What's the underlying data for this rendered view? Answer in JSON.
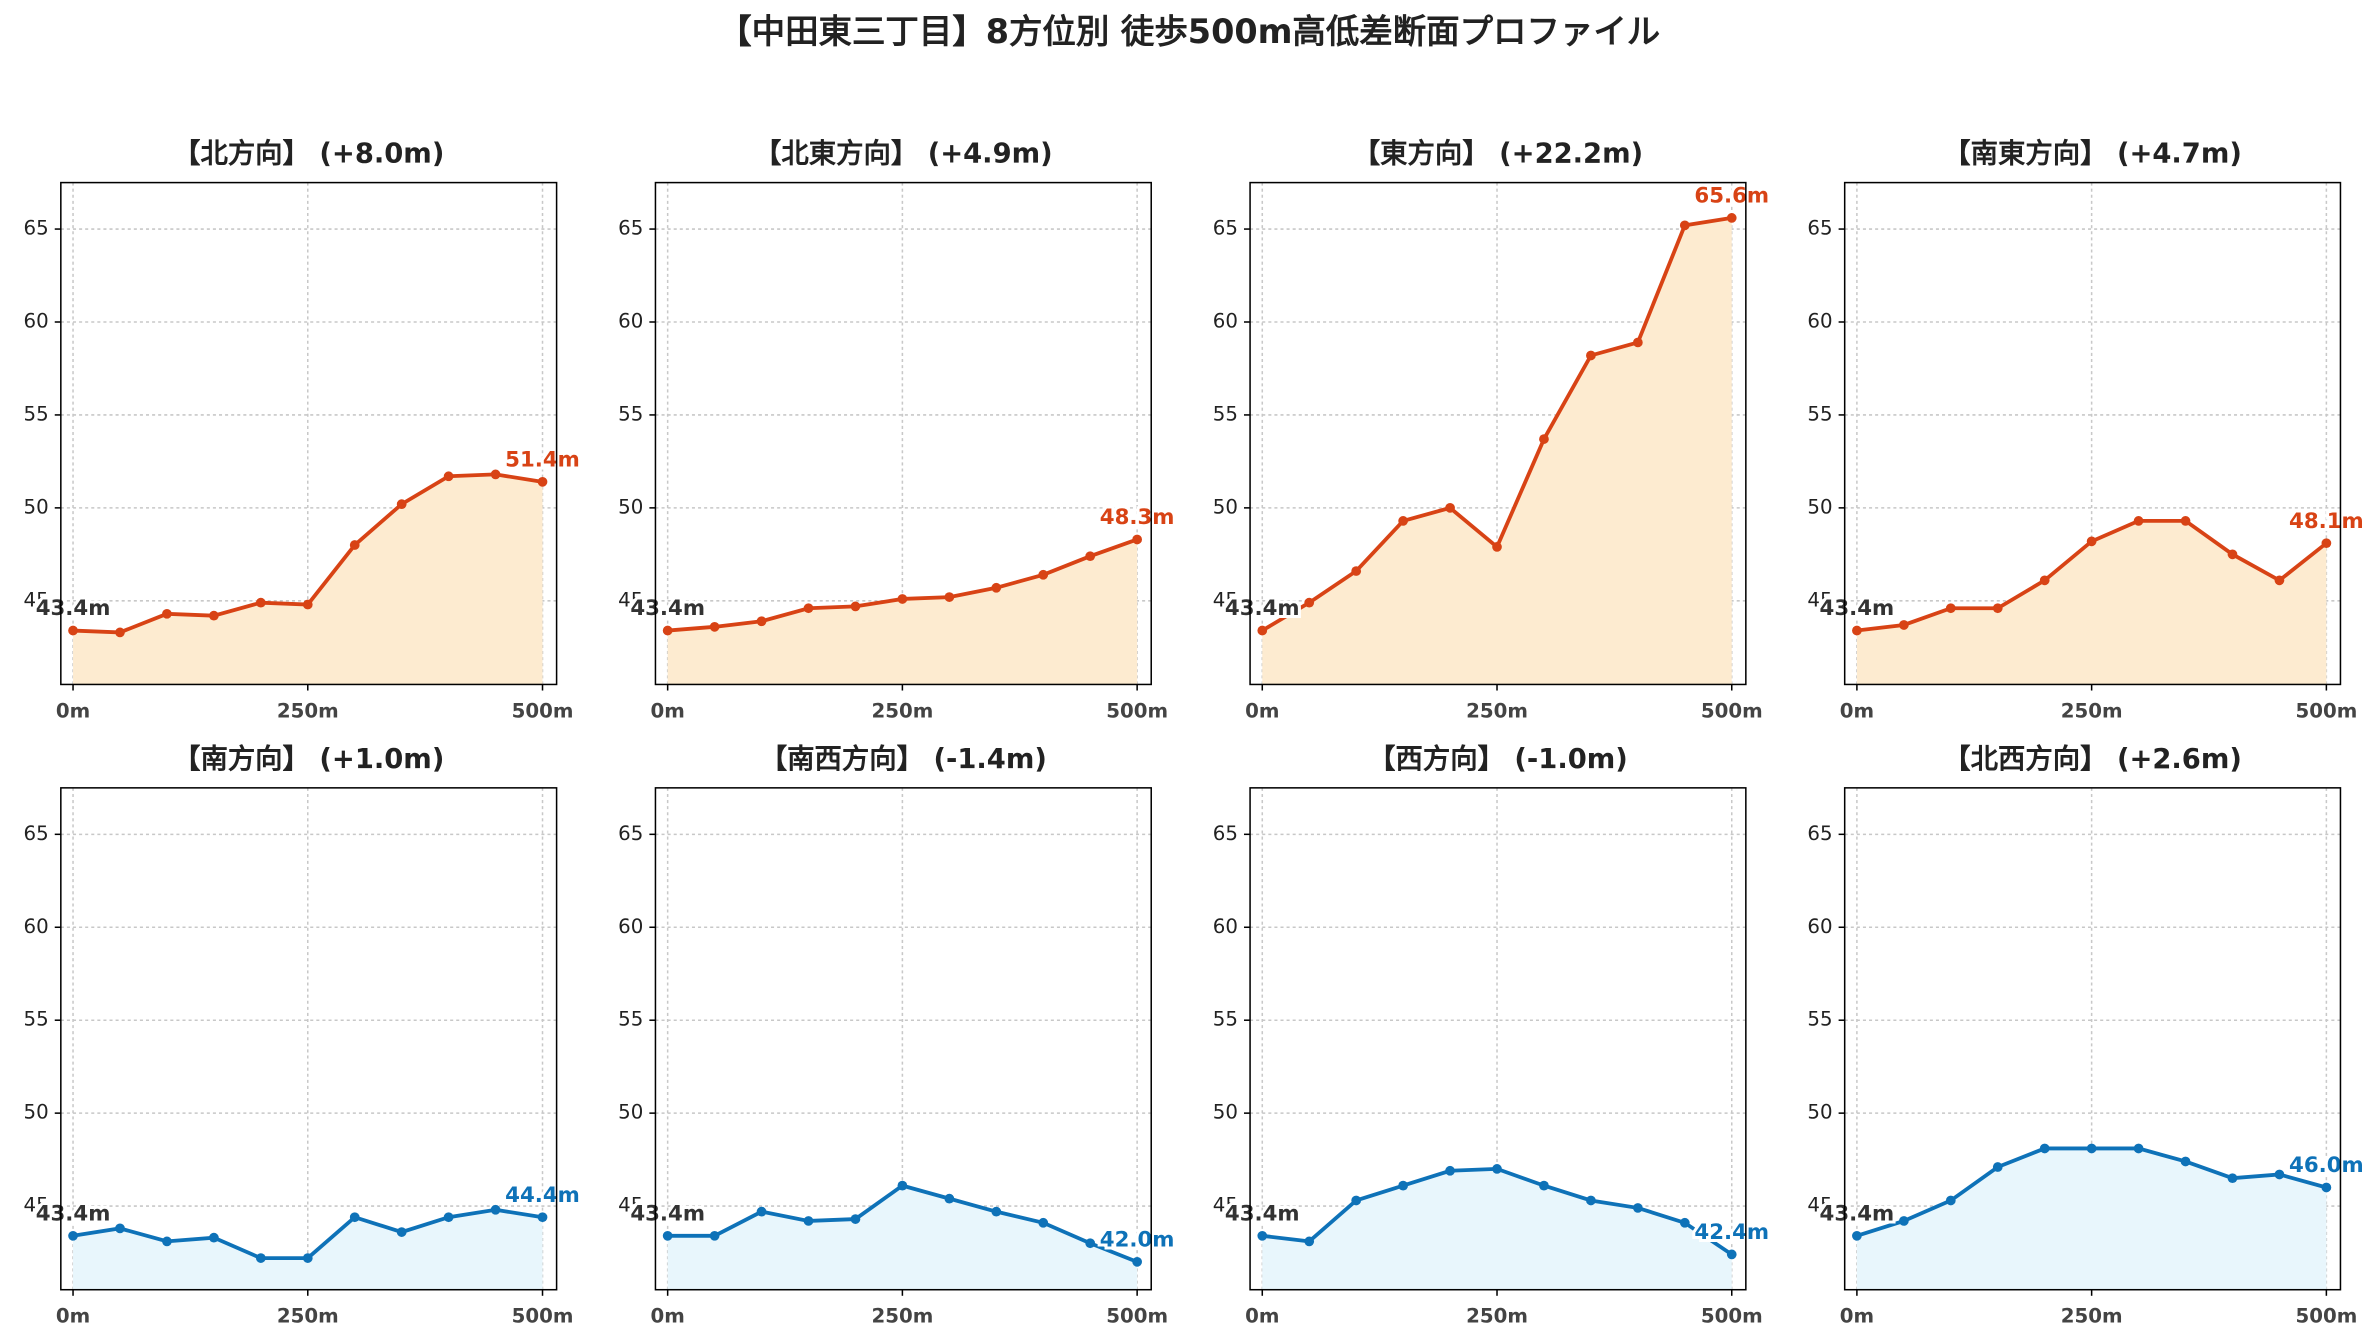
{
  "title": "【中田東三丁目】8方位別 徒歩500m高低差断面プロファイル",
  "chart_data": [
    {
      "type": "line",
      "title": "【北方向】 (+8.0m)",
      "x": [
        0,
        50,
        100,
        150,
        200,
        250,
        300,
        350,
        400,
        450,
        500
      ],
      "values": [
        43.4,
        43.3,
        44.3,
        44.2,
        44.9,
        44.8,
        48.0,
        50.2,
        51.7,
        51.8,
        51.4
      ],
      "value_labels": [
        "43.4m",
        null,
        null,
        null,
        null,
        null,
        null,
        null,
        null,
        null,
        "51.4m"
      ],
      "color": "#d84315",
      "fill_color": "#fdebd0",
      "xlim": [
        -13,
        515
      ],
      "ylim": [
        40.5,
        67.5
      ],
      "xticks": [
        {
          "value": 0,
          "label": "0m"
        },
        {
          "value": 250,
          "label": "250m"
        },
        {
          "value": 500,
          "label": "500m"
        }
      ],
      "yticks": [
        45,
        50,
        55,
        60,
        65
      ],
      "grid": true
    },
    {
      "type": "line",
      "title": "【北東方向】 (+4.9m)",
      "x": [
        0,
        50,
        100,
        150,
        200,
        250,
        300,
        350,
        400,
        450,
        500
      ],
      "values": [
        43.4,
        43.6,
        43.9,
        44.6,
        44.7,
        45.1,
        45.2,
        45.7,
        46.4,
        47.4,
        48.3
      ],
      "value_labels": [
        "43.4m",
        null,
        null,
        null,
        null,
        null,
        null,
        null,
        null,
        null,
        "48.3m"
      ],
      "color": "#d84315",
      "fill_color": "#fdebd0",
      "xlim": [
        -13,
        515
      ],
      "ylim": [
        40.5,
        67.5
      ],
      "xticks": [
        {
          "value": 0,
          "label": "0m"
        },
        {
          "value": 250,
          "label": "250m"
        },
        {
          "value": 500,
          "label": "500m"
        }
      ],
      "yticks": [
        45,
        50,
        55,
        60,
        65
      ],
      "grid": true
    },
    {
      "type": "line",
      "title": "【東方向】 (+22.2m)",
      "x": [
        0,
        50,
        100,
        150,
        200,
        250,
        300,
        350,
        400,
        450,
        500
      ],
      "values": [
        43.4,
        44.9,
        46.6,
        49.3,
        50.0,
        47.9,
        53.7,
        58.2,
        58.9,
        65.2,
        65.6
      ],
      "value_labels": [
        "43.4m",
        null,
        null,
        null,
        null,
        null,
        null,
        null,
        null,
        null,
        "65.6m"
      ],
      "color": "#d84315",
      "fill_color": "#fdebd0",
      "xlim": [
        -13,
        515
      ],
      "ylim": [
        40.5,
        67.5
      ],
      "xticks": [
        {
          "value": 0,
          "label": "0m"
        },
        {
          "value": 250,
          "label": "250m"
        },
        {
          "value": 500,
          "label": "500m"
        }
      ],
      "yticks": [
        45,
        50,
        55,
        60,
        65
      ],
      "grid": true
    },
    {
      "type": "line",
      "title": "【南東方向】 (+4.7m)",
      "x": [
        0,
        50,
        100,
        150,
        200,
        250,
        300,
        350,
        400,
        450,
        500
      ],
      "values": [
        43.4,
        43.7,
        44.6,
        44.6,
        46.1,
        48.2,
        49.3,
        49.3,
        47.5,
        46.1,
        48.1
      ],
      "value_labels": [
        "43.4m",
        null,
        null,
        null,
        null,
        null,
        null,
        null,
        null,
        null,
        "48.1m"
      ],
      "color": "#d84315",
      "fill_color": "#fdebd0",
      "xlim": [
        -13,
        515
      ],
      "ylim": [
        40.5,
        67.5
      ],
      "xticks": [
        {
          "value": 0,
          "label": "0m"
        },
        {
          "value": 250,
          "label": "250m"
        },
        {
          "value": 500,
          "label": "500m"
        }
      ],
      "yticks": [
        45,
        50,
        55,
        60,
        65
      ],
      "grid": true
    },
    {
      "type": "line",
      "title": "【南方向】 (+1.0m)",
      "x": [
        0,
        50,
        100,
        150,
        200,
        250,
        300,
        350,
        400,
        450,
        500
      ],
      "values": [
        43.4,
        43.8,
        43.1,
        43.3,
        42.2,
        42.2,
        44.4,
        43.6,
        44.4,
        44.8,
        44.4
      ],
      "value_labels": [
        "43.4m",
        null,
        null,
        null,
        null,
        null,
        null,
        null,
        null,
        null,
        "44.4m"
      ],
      "color": "#0e72b8",
      "fill_color": "#e8f6fc",
      "xlim": [
        -13,
        515
      ],
      "ylim": [
        40.5,
        67.5
      ],
      "xticks": [
        {
          "value": 0,
          "label": "0m"
        },
        {
          "value": 250,
          "label": "250m"
        },
        {
          "value": 500,
          "label": "500m"
        }
      ],
      "yticks": [
        45,
        50,
        55,
        60,
        65
      ],
      "grid": true
    },
    {
      "type": "line",
      "title": "【南西方向】 (-1.4m)",
      "x": [
        0,
        50,
        100,
        150,
        200,
        250,
        300,
        350,
        400,
        450,
        500
      ],
      "values": [
        43.4,
        43.4,
        44.7,
        44.2,
        44.3,
        46.1,
        45.4,
        44.7,
        44.1,
        43.0,
        42.0
      ],
      "value_labels": [
        "43.4m",
        null,
        null,
        null,
        null,
        null,
        null,
        null,
        null,
        null,
        "42.0m"
      ],
      "color": "#0e72b8",
      "fill_color": "#e8f6fc",
      "xlim": [
        -13,
        515
      ],
      "ylim": [
        40.5,
        67.5
      ],
      "xticks": [
        {
          "value": 0,
          "label": "0m"
        },
        {
          "value": 250,
          "label": "250m"
        },
        {
          "value": 500,
          "label": "500m"
        }
      ],
      "yticks": [
        45,
        50,
        55,
        60,
        65
      ],
      "grid": true
    },
    {
      "type": "line",
      "title": "【西方向】 (-1.0m)",
      "x": [
        0,
        50,
        100,
        150,
        200,
        250,
        300,
        350,
        400,
        450,
        500
      ],
      "values": [
        43.4,
        43.1,
        45.3,
        46.1,
        46.9,
        47.0,
        46.1,
        45.3,
        44.9,
        44.1,
        42.4
      ],
      "value_labels": [
        "43.4m",
        null,
        null,
        null,
        null,
        null,
        null,
        null,
        null,
        null,
        "42.4m"
      ],
      "color": "#0e72b8",
      "fill_color": "#e8f6fc",
      "xlim": [
        -13,
        515
      ],
      "ylim": [
        40.5,
        67.5
      ],
      "xticks": [
        {
          "value": 0,
          "label": "0m"
        },
        {
          "value": 250,
          "label": "250m"
        },
        {
          "value": 500,
          "label": "500m"
        }
      ],
      "yticks": [
        45,
        50,
        55,
        60,
        65
      ],
      "grid": true
    },
    {
      "type": "line",
      "title": "【北西方向】 (+2.6m)",
      "x": [
        0,
        50,
        100,
        150,
        200,
        250,
        300,
        350,
        400,
        450,
        500
      ],
      "values": [
        43.4,
        44.2,
        45.3,
        47.1,
        48.1,
        48.1,
        48.1,
        47.4,
        46.5,
        46.7,
        46.0
      ],
      "value_labels": [
        "43.4m",
        null,
        null,
        null,
        null,
        null,
        null,
        null,
        null,
        null,
        "46.0m"
      ],
      "color": "#0e72b8",
      "fill_color": "#e8f6fc",
      "xlim": [
        -13,
        515
      ],
      "ylim": [
        40.5,
        67.5
      ],
      "xticks": [
        {
          "value": 0,
          "label": "0m"
        },
        {
          "value": 250,
          "label": "250m"
        },
        {
          "value": 500,
          "label": "500m"
        }
      ],
      "yticks": [
        45,
        50,
        55,
        60,
        65
      ],
      "grid": true
    }
  ]
}
